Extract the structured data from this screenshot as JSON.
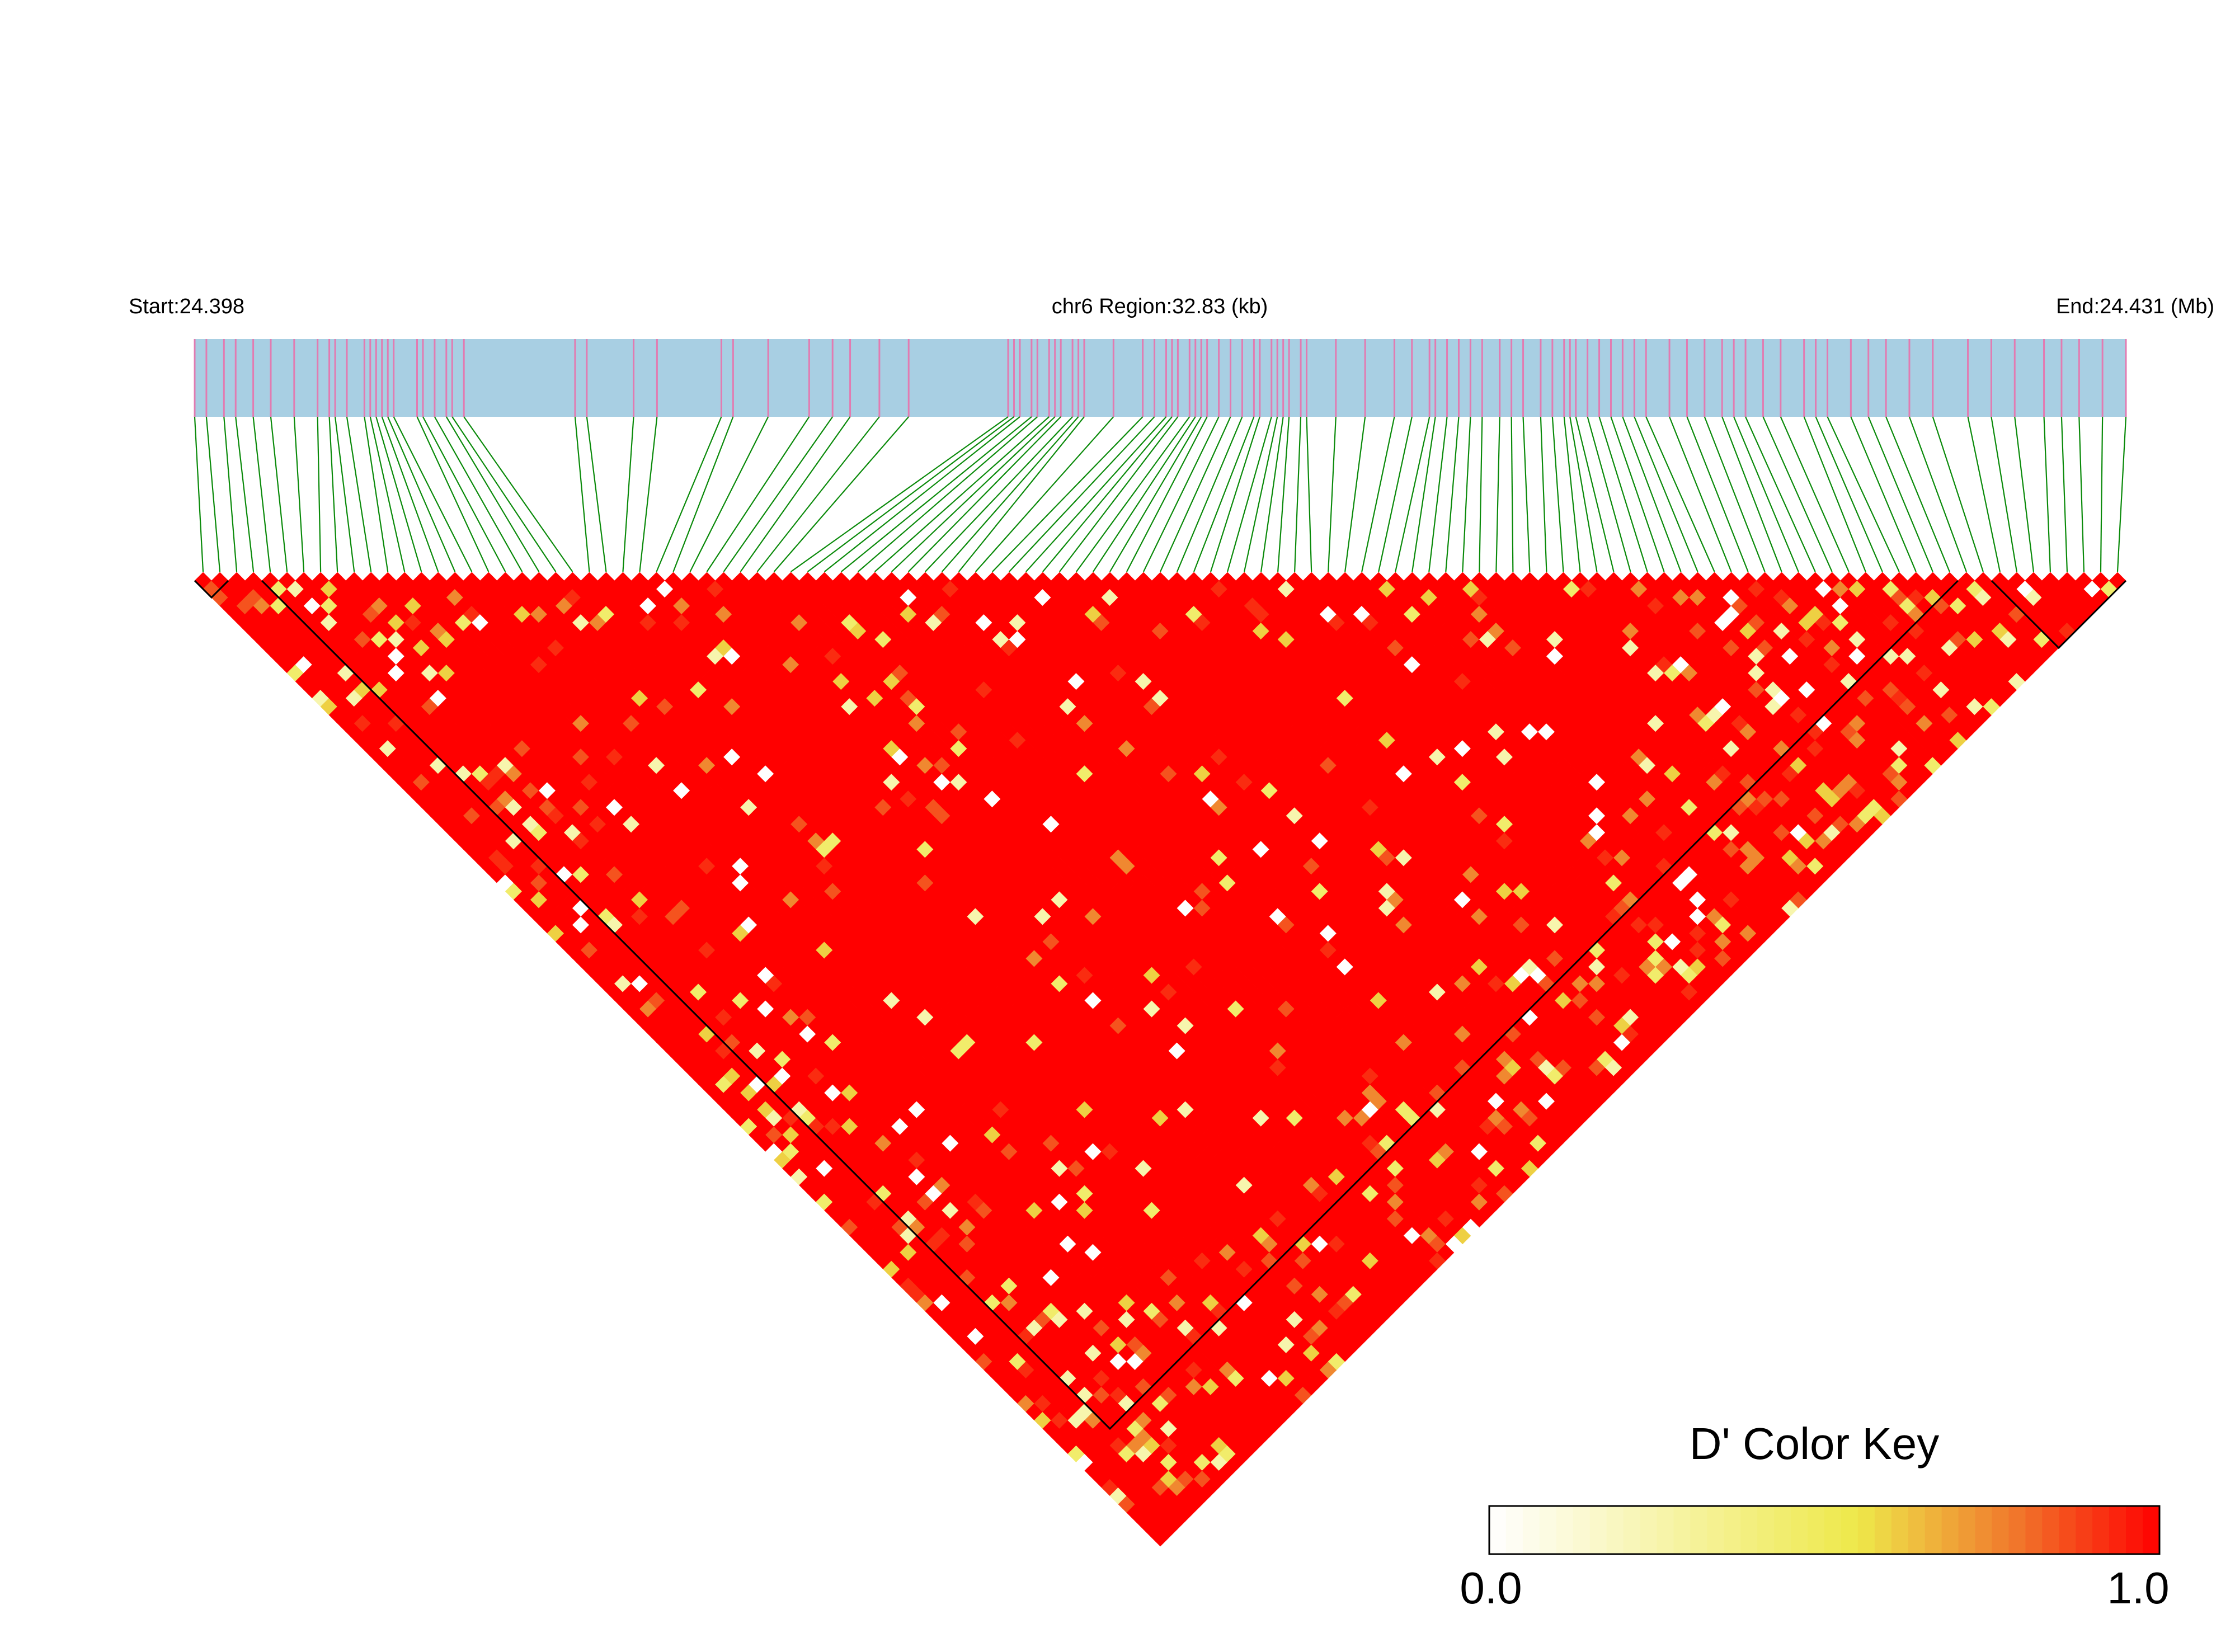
{
  "chart_data": {
    "type": "heatmap",
    "subtype": "linkage-disequilibrium-triangle",
    "header": {
      "start_label": "Start:24.398",
      "region_label": "chr6 Region:32.83 (kb)",
      "end_label": "End:24.431 (Mb)"
    },
    "region": {
      "chromosome": "chr6",
      "start_mb": 24.398,
      "end_mb": 24.431,
      "length_kb": 32.83
    },
    "snp_count": 115,
    "snp_positions_mb": [
      24.398,
      24.3982,
      24.3985,
      24.3987,
      24.399,
      24.3993,
      24.3997,
      24.4001,
      24.4003,
      24.4004,
      24.4006,
      24.4009,
      24.401,
      24.4011,
      24.4012,
      24.4013,
      24.4014,
      24.4018,
      24.4019,
      24.4021,
      24.4023,
      24.4024,
      24.4026,
      24.4045,
      24.4047,
      24.4055,
      24.4059,
      24.407,
      24.4072,
      24.4078,
      24.4085,
      24.4089,
      24.4092,
      24.4097,
      24.4102,
      24.4119,
      24.412,
      24.4121,
      24.4123,
      24.4124,
      24.4126,
      24.4127,
      24.4128,
      24.413,
      24.4131,
      24.4132,
      24.4137,
      24.4142,
      24.4144,
      24.4146,
      24.4147,
      24.4148,
      24.415,
      24.4151,
      24.4152,
      24.4153,
      24.4155,
      24.4157,
      24.4159,
      24.4161,
      24.4162,
      24.4164,
      24.4165,
      24.4166,
      24.4167,
      24.4169,
      24.417,
      24.4175,
      24.418,
      24.4185,
      24.4188,
      24.4191,
      24.4192,
      24.4194,
      24.4196,
      24.4198,
      24.42,
      24.4203,
      24.4205,
      24.4207,
      24.421,
      24.4212,
      24.4214,
      24.4215,
      24.4216,
      24.4218,
      24.422,
      24.4222,
      24.4224,
      24.4226,
      24.4228,
      24.4232,
      24.4235,
      24.4238,
      24.4241,
      24.4243,
      24.4245,
      24.4248,
      24.4251,
      24.4255,
      24.4257,
      24.4259,
      24.4263,
      24.4266,
      24.4269,
      24.4273,
      24.4277,
      24.4283,
      24.4287,
      24.4291,
      24.4296,
      24.4299,
      24.4302,
      24.4306,
      24.431
    ],
    "cell_value_levels": {
      "description": "D' value per SNP pair (i<j); most pairs are 1.0",
      "background": 1.0,
      "lower_values": [
        0.0,
        0.25,
        0.45,
        0.6,
        0.75,
        0.85,
        0.92
      ]
    },
    "ld_blocks": [
      {
        "first_snp": 0,
        "last_snp": 1
      },
      {
        "first_snp": 4,
        "last_snp": 104
      },
      {
        "first_snp": 107,
        "last_snp": 114
      }
    ],
    "color_key": {
      "title": "D' Color Key",
      "min_label": "0.0",
      "max_label": "1.0",
      "min": 0.0,
      "max": 1.0,
      "colors": [
        "#ffffff",
        "#eee84a",
        "#f07a2c",
        "#ff0000"
      ],
      "placement": "bottom-right"
    },
    "colors": {
      "gene_track": "#a8cfe3",
      "snp_tick": "#e27bb1",
      "connector": "#0a8a0a",
      "block_outline": "#000000"
    }
  }
}
